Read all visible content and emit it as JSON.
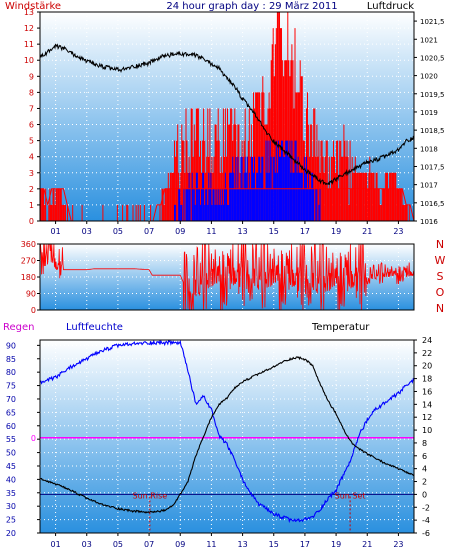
{
  "window": {
    "title": "24 hour graph day : 29 März 2011",
    "label_wind": "Windstärke",
    "label_pressure": "Luftdruck",
    "label_rain": "Regen",
    "label_humidity": "Luftfeuchte",
    "label_temperature": "Temperatur"
  },
  "colors": {
    "background": "#ffffff",
    "frame": "#000000",
    "grid": "#ffffff",
    "sky_top": "#ffffff",
    "sky_bottom": "#2a90df",
    "wind_red": "#ff0000",
    "wind_blue": "#0000ff",
    "pressure": "#000000",
    "direction": "#ff0000",
    "humidity": "#0000ff",
    "temperature": "#000000",
    "rain": "#ff00ff",
    "dewline": "#000080",
    "title": "#000080",
    "wind_label": "#cc0000",
    "rain_label": "#cc00cc",
    "humidity_label": "#0000cc",
    "humidity_axis": "#0000aa",
    "compass": "#cc0000",
    "marker": "#cc0000"
  },
  "chart_data": [
    {
      "type": "line",
      "id": "wind-pressure",
      "title": "24 hour graph day : 29 März 2011",
      "x_tick_labels": [
        "01",
        "03",
        "05",
        "07",
        "09",
        "11",
        "13",
        "15",
        "17",
        "19",
        "21",
        "23"
      ],
      "xlim": [
        0,
        24
      ],
      "wind": {
        "label": "Windstärke",
        "ylim": [
          0,
          13
        ],
        "y_ticks": [
          0,
          1,
          2,
          3,
          4,
          5,
          6,
          7,
          8,
          9,
          10,
          11,
          12,
          13
        ],
        "keypoints_gust": [
          [
            0.0,
            2
          ],
          [
            0.5,
            1
          ],
          [
            1.2,
            2
          ],
          [
            2.0,
            0
          ],
          [
            4.0,
            0
          ],
          [
            6.0,
            0
          ],
          [
            7.2,
            0
          ],
          [
            7.8,
            1
          ],
          [
            8.2,
            2
          ],
          [
            8.6,
            3
          ],
          [
            9.2,
            5
          ],
          [
            10.5,
            5
          ],
          [
            11.5,
            5
          ],
          [
            12.5,
            5
          ],
          [
            13.5,
            6
          ],
          [
            14.5,
            8
          ],
          [
            15.0,
            10
          ],
          [
            15.3,
            13
          ],
          [
            15.6,
            9
          ],
          [
            16.0,
            11
          ],
          [
            16.5,
            9
          ],
          [
            17.0,
            6
          ],
          [
            17.5,
            5
          ],
          [
            18.5,
            3
          ],
          [
            19.0,
            4
          ],
          [
            20.0,
            3
          ],
          [
            21.0,
            3
          ],
          [
            22.0,
            2
          ],
          [
            22.5,
            3
          ],
          [
            23.5,
            1
          ],
          [
            24.0,
            0
          ]
        ],
        "keypoints_avg": [
          [
            0.0,
            0
          ],
          [
            8.5,
            0
          ],
          [
            9.0,
            1
          ],
          [
            10.0,
            2
          ],
          [
            11.0,
            2
          ],
          [
            12.0,
            2
          ],
          [
            13.0,
            3
          ],
          [
            14.0,
            3
          ],
          [
            15.0,
            4
          ],
          [
            15.5,
            5
          ],
          [
            16.0,
            4
          ],
          [
            17.0,
            3
          ],
          [
            17.5,
            2
          ],
          [
            18.0,
            0
          ],
          [
            24.0,
            0
          ]
        ]
      },
      "pressure": {
        "label": "Luftdruck",
        "ylim": [
          1016,
          1021.75
        ],
        "y_ticks": [
          "1016",
          "1016,5",
          "1017",
          "1017,5",
          "1018",
          "1018,5",
          "1019",
          "1019,5",
          "1020",
          "1020,5",
          "1021",
          "1021,5"
        ],
        "keypoints": [
          [
            0.0,
            1020.5
          ],
          [
            1.0,
            1020.8
          ],
          [
            1.5,
            1020.75
          ],
          [
            2.5,
            1020.5
          ],
          [
            3.5,
            1020.3
          ],
          [
            4.5,
            1020.2
          ],
          [
            5.2,
            1020.15
          ],
          [
            6.0,
            1020.25
          ],
          [
            7.0,
            1020.35
          ],
          [
            8.0,
            1020.55
          ],
          [
            9.0,
            1020.6
          ],
          [
            10.0,
            1020.55
          ],
          [
            10.5,
            1020.45
          ],
          [
            11.5,
            1020.2
          ],
          [
            12.0,
            1019.9
          ],
          [
            12.5,
            1019.7
          ],
          [
            13.0,
            1019.35
          ],
          [
            13.5,
            1019.1
          ],
          [
            14.0,
            1018.8
          ],
          [
            14.5,
            1018.45
          ],
          [
            15.0,
            1018.2
          ],
          [
            16.0,
            1017.8
          ],
          [
            17.0,
            1017.4
          ],
          [
            18.0,
            1017.1
          ],
          [
            18.5,
            1017.0
          ],
          [
            19.0,
            1017.15
          ],
          [
            20.0,
            1017.4
          ],
          [
            21.0,
            1017.6
          ],
          [
            22.0,
            1017.75
          ],
          [
            23.0,
            1017.95
          ],
          [
            23.5,
            1018.2
          ],
          [
            24.0,
            1018.3
          ]
        ]
      }
    },
    {
      "type": "line",
      "id": "wind-direction",
      "ylim": [
        0,
        360
      ],
      "y_ticks": [
        "0",
        "90",
        "180",
        "270",
        "360"
      ],
      "compass_labels": [
        "N",
        "W",
        "S",
        "O",
        "N"
      ],
      "keypoints": [
        [
          0.0,
          300
        ],
        [
          0.5,
          340
        ],
        [
          1.0,
          250
        ],
        [
          1.5,
          220
        ],
        [
          2.0,
          220
        ],
        [
          3.0,
          220
        ],
        [
          3.5,
          225
        ],
        [
          5.0,
          225
        ],
        [
          6.0,
          225
        ],
        [
          7.0,
          220
        ],
        [
          7.2,
          190
        ],
        [
          8.0,
          190
        ],
        [
          9.0,
          190
        ],
        [
          9.5,
          90
        ],
        [
          10.5,
          180
        ],
        [
          11.0,
          200
        ],
        [
          12.0,
          180
        ],
        [
          13.0,
          200
        ],
        [
          14.0,
          190
        ],
        [
          15.0,
          200
        ],
        [
          16.0,
          180
        ],
        [
          17.0,
          170
        ],
        [
          18.0,
          170
        ],
        [
          19.0,
          180
        ],
        [
          20.0,
          170
        ],
        [
          21.0,
          180
        ],
        [
          22.0,
          200
        ],
        [
          23.0,
          200
        ],
        [
          24.0,
          200
        ]
      ],
      "noise_ranges": [
        [
          0.0,
          1.5,
          120
        ],
        [
          9.2,
          21.0,
          210
        ],
        [
          21.0,
          24.0,
          60
        ]
      ]
    },
    {
      "type": "line",
      "id": "humidity-temperature",
      "x_tick_labels": [
        "01",
        "03",
        "05",
        "07",
        "09",
        "11",
        "13",
        "15",
        "17",
        "19",
        "21",
        "23"
      ],
      "xlim": [
        0,
        24
      ],
      "humidity": {
        "label": "Luftfeuchte",
        "ylim": [
          20,
          92
        ],
        "y_ticks": [
          "20",
          "25",
          "30",
          "35",
          "40",
          "45",
          "50",
          "55",
          "60",
          "65",
          "70",
          "75",
          "80",
          "85",
          "90"
        ],
        "keypoints": [
          [
            0.0,
            76
          ],
          [
            0.5,
            77
          ],
          [
            1.0,
            78
          ],
          [
            2.0,
            82
          ],
          [
            3.0,
            85
          ],
          [
            4.0,
            88
          ],
          [
            5.0,
            90
          ],
          [
            6.0,
            90.5
          ],
          [
            7.0,
            91
          ],
          [
            8.0,
            91
          ],
          [
            9.0,
            91
          ],
          [
            9.3,
            85
          ],
          [
            9.6,
            78
          ],
          [
            10.0,
            68
          ],
          [
            10.5,
            71
          ],
          [
            11.0,
            66
          ],
          [
            11.5,
            56
          ],
          [
            12.0,
            53
          ],
          [
            12.5,
            47
          ],
          [
            13.0,
            40
          ],
          [
            13.5,
            35
          ],
          [
            14.0,
            31
          ],
          [
            14.5,
            29
          ],
          [
            15.0,
            27
          ],
          [
            15.5,
            26
          ],
          [
            16.0,
            25
          ],
          [
            16.5,
            24.5
          ],
          [
            17.0,
            25
          ],
          [
            17.5,
            26
          ],
          [
            18.0,
            29
          ],
          [
            18.5,
            33
          ],
          [
            19.0,
            36
          ],
          [
            19.5,
            42
          ],
          [
            20.0,
            48
          ],
          [
            20.5,
            57
          ],
          [
            21.0,
            62
          ],
          [
            21.5,
            66
          ],
          [
            22.0,
            68
          ],
          [
            23.0,
            72
          ],
          [
            23.5,
            75
          ],
          [
            24.0,
            77
          ]
        ]
      },
      "temperature": {
        "label": "Temperatur",
        "ylim": [
          -6,
          24
        ],
        "y_ticks": [
          "-6",
          "-4",
          "-2",
          "0",
          "2",
          "4",
          "6",
          "8",
          "10",
          "12",
          "14",
          "16",
          "18",
          "20",
          "22",
          "24"
        ],
        "keypoints": [
          [
            0.0,
            2.5
          ],
          [
            0.5,
            2.0
          ],
          [
            1.0,
            1.6
          ],
          [
            2.0,
            0.6
          ],
          [
            3.0,
            -0.6
          ],
          [
            4.0,
            -1.6
          ],
          [
            5.0,
            -2.2
          ],
          [
            6.0,
            -2.6
          ],
          [
            7.0,
            -2.8
          ],
          [
            8.0,
            -2.5
          ],
          [
            8.5,
            -1.8
          ],
          [
            9.0,
            0.0
          ],
          [
            9.5,
            2.0
          ],
          [
            10.0,
            6.0
          ],
          [
            10.5,
            9.0
          ],
          [
            11.0,
            12.0
          ],
          [
            11.5,
            14.0
          ],
          [
            12.0,
            15.0
          ],
          [
            12.5,
            16.5
          ],
          [
            13.0,
            17.5
          ],
          [
            14.0,
            18.7
          ],
          [
            15.0,
            19.8
          ],
          [
            15.5,
            20.5
          ],
          [
            16.0,
            21.0
          ],
          [
            16.5,
            21.3
          ],
          [
            17.0,
            21.0
          ],
          [
            17.5,
            20.0
          ],
          [
            18.0,
            17.0
          ],
          [
            18.5,
            14.5
          ],
          [
            19.0,
            12.5
          ],
          [
            19.5,
            10.0
          ],
          [
            20.0,
            8.0
          ],
          [
            20.5,
            7.0
          ],
          [
            21.0,
            6.3
          ],
          [
            22.0,
            5.0
          ],
          [
            23.0,
            4.0
          ],
          [
            23.5,
            3.4
          ],
          [
            24.0,
            3.0
          ]
        ]
      },
      "rain": {
        "label": "Regen",
        "value": 0,
        "ylim": [
          -1,
          1
        ],
        "y_ticks": [
          "0"
        ]
      },
      "reference_level": {
        "temperature": 0
      },
      "annotations": [
        {
          "text": "Sun Rise",
          "hour": 7.05
        },
        {
          "text": "Sun Set",
          "hour": 19.9
        }
      ]
    }
  ]
}
